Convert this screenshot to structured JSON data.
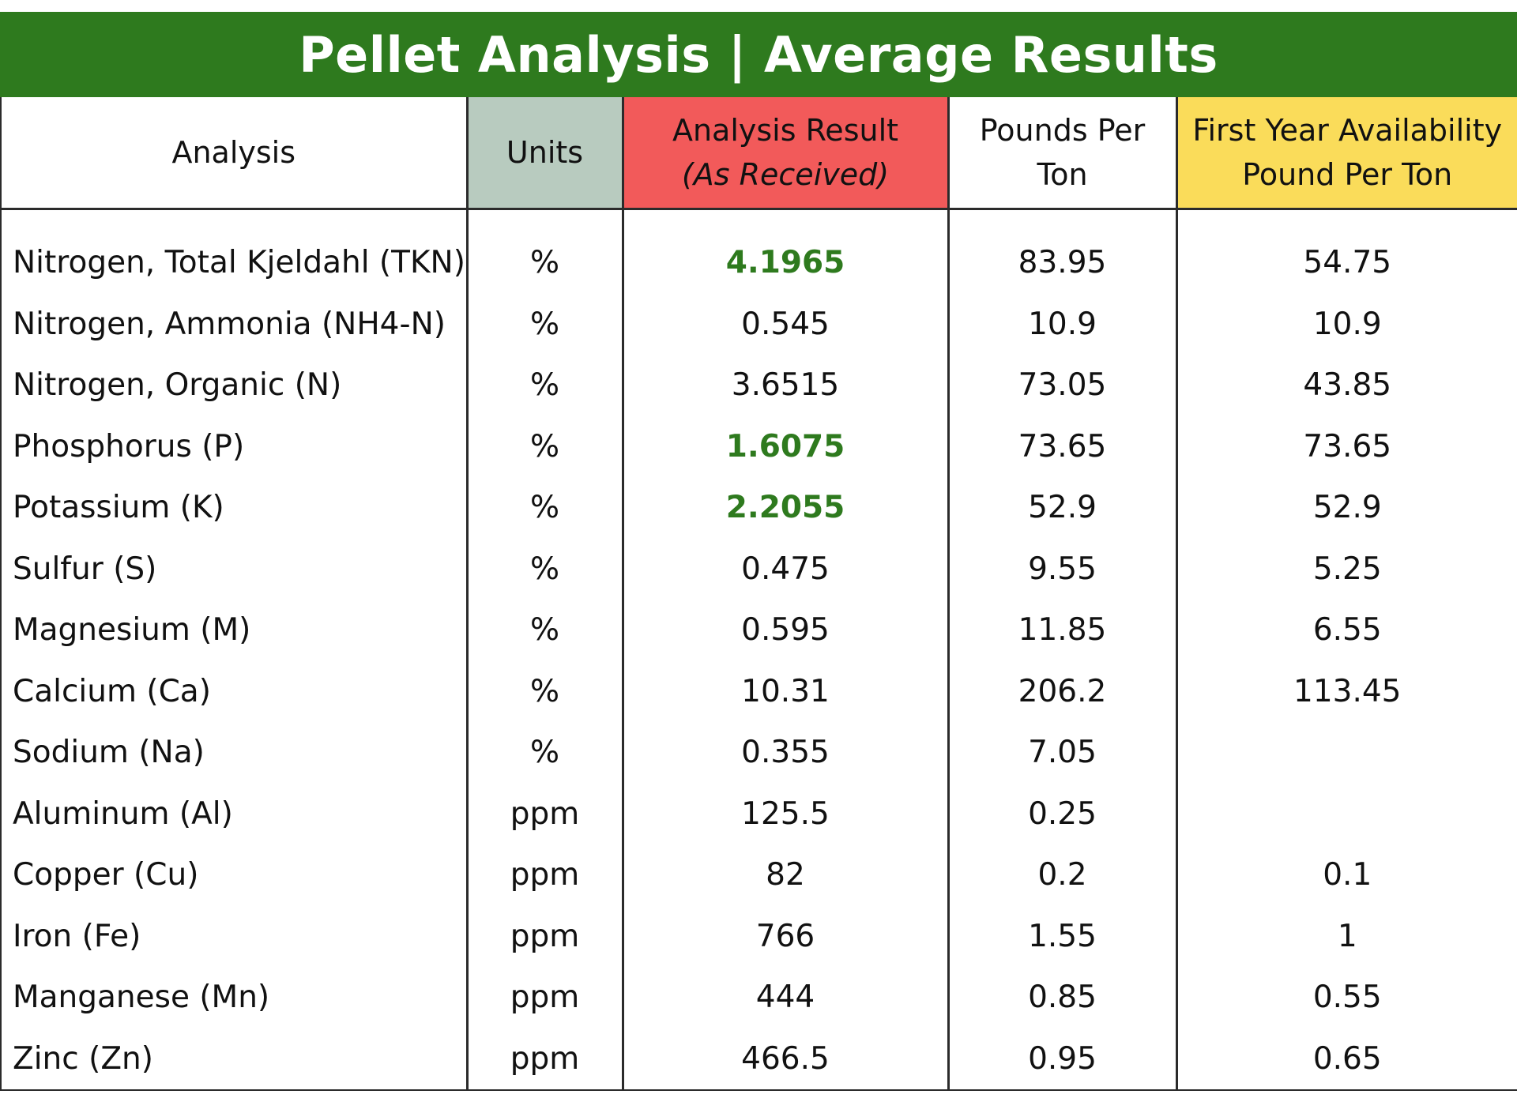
{
  "title": "Pellet Analysis | Average Results",
  "colors": {
    "banner": "#2e7a1e",
    "units_header": "#b8cbbf",
    "result_header": "#f25a5a",
    "first_year_header": "#fadc5a",
    "highlight_text": "#2e7a1e"
  },
  "headers": {
    "analysis": "Analysis",
    "units": "Units",
    "result_line1": "Analysis Result",
    "result_line2": "(As Received)",
    "pounds_line1": "Pounds Per",
    "pounds_line2": "Ton",
    "first_line1": "First Year Availability",
    "first_line2": "Pound Per Ton"
  },
  "rows": [
    {
      "analysis": "Nitrogen, Total Kjeldahl (TKN)",
      "units": "%",
      "result": "4.1965",
      "highlight": true,
      "pounds": "83.95",
      "first_year": "54.75"
    },
    {
      "analysis": "Nitrogen, Ammonia (NH4-N)",
      "units": "%",
      "result": "0.545",
      "highlight": false,
      "pounds": "10.9",
      "first_year": "10.9"
    },
    {
      "analysis": "Nitrogen, Organic (N)",
      "units": "%",
      "result": "3.6515",
      "highlight": false,
      "pounds": "73.05",
      "first_year": "43.85"
    },
    {
      "analysis": "Phosphorus (P)",
      "units": "%",
      "result": "1.6075",
      "highlight": true,
      "pounds": "73.65",
      "first_year": "73.65"
    },
    {
      "analysis": "Potassium (K)",
      "units": "%",
      "result": "2.2055",
      "highlight": true,
      "pounds": "52.9",
      "first_year": "52.9"
    },
    {
      "analysis": "Sulfur (S)",
      "units": "%",
      "result": "0.475",
      "highlight": false,
      "pounds": "9.55",
      "first_year": "5.25"
    },
    {
      "analysis": "Magnesium (M)",
      "units": "%",
      "result": "0.595",
      "highlight": false,
      "pounds": "11.85",
      "first_year": "6.55"
    },
    {
      "analysis": "Calcium (Ca)",
      "units": "%",
      "result": "10.31",
      "highlight": false,
      "pounds": "206.2",
      "first_year": "113.45"
    },
    {
      "analysis": "Sodium (Na)",
      "units": "%",
      "result": "0.355",
      "highlight": false,
      "pounds": "7.05",
      "first_year": ""
    },
    {
      "analysis": "Aluminum (Al)",
      "units": "ppm",
      "result": "125.5",
      "highlight": false,
      "pounds": "0.25",
      "first_year": ""
    },
    {
      "analysis": "Copper (Cu)",
      "units": "ppm",
      "result": "82",
      "highlight": false,
      "pounds": "0.2",
      "first_year": "0.1"
    },
    {
      "analysis": "Iron (Fe)",
      "units": "ppm",
      "result": "766",
      "highlight": false,
      "pounds": "1.55",
      "first_year": "1"
    },
    {
      "analysis": "Manganese (Mn)",
      "units": "ppm",
      "result": "444",
      "highlight": false,
      "pounds": "0.85",
      "first_year": "0.55"
    },
    {
      "analysis": "Zinc (Zn)",
      "units": "ppm",
      "result": "466.5",
      "highlight": false,
      "pounds": "0.95",
      "first_year": "0.65"
    }
  ]
}
